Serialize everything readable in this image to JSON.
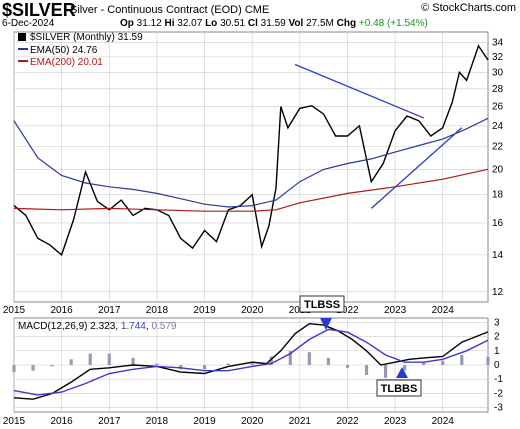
{
  "header": {
    "symbol": "$SILVER",
    "description": "Silver - Continuous Contract (EOD)",
    "exchange": "CME",
    "date": "6-Dec-2024",
    "brand": "© StockCharts.com",
    "open_label": "Op",
    "open": "31.12",
    "high_label": "Hi",
    "high": "32.07",
    "low_label": "Lo",
    "low": "30.51",
    "close_label": "Cl",
    "close": "31.59",
    "vol_label": "Vol",
    "vol": "27.5M",
    "chg_label": "Chg",
    "chg": "+0.48 (+1.54%)"
  },
  "legend": {
    "price": "$SILVER (Monthly) 31.59",
    "ema50": "EMA(50) 24.76",
    "ema200": "EMA(200) 20.01"
  },
  "macd_legend": {
    "label": "MACD(12,26,9)",
    "macd": "2.323",
    "signal": "1.744",
    "hist": "0.579"
  },
  "annotations": {
    "tlbss": "TLBSS",
    "tlbbs": "TLBBS"
  },
  "colors": {
    "price": "#000000",
    "ema50": "#2a3a9a",
    "ema200": "#b01818",
    "trendline": "#2a3ad0",
    "macd": "#000000",
    "signal": "#3a3ad0",
    "hist": "#9a9ab4",
    "chg": "#1a9a1a",
    "grid": "#cccccc"
  },
  "chart_data": [
    {
      "type": "line",
      "title": "$SILVER (Monthly)",
      "x_ticks": [
        "2015",
        "2016",
        "2017",
        "2018",
        "2019",
        "2020",
        "2021",
        "2022",
        "2023",
        "2024"
      ],
      "y_ticks": [
        12,
        14,
        16,
        18,
        20,
        22,
        24,
        26,
        28,
        30,
        32,
        34
      ],
      "scale": "log",
      "ylim": [
        11.5,
        35.5
      ],
      "grid": true,
      "x_start": 2015.0,
      "x_end": 2024.95,
      "series": [
        {
          "name": "$SILVER (Monthly)",
          "x": [
            2015.0,
            2015.25,
            2015.5,
            2015.75,
            2016.0,
            2016.25,
            2016.5,
            2016.75,
            2017.0,
            2017.25,
            2017.5,
            2017.75,
            2018.0,
            2018.25,
            2018.5,
            2018.75,
            2019.0,
            2019.25,
            2019.5,
            2019.75,
            2020.0,
            2020.2,
            2020.35,
            2020.5,
            2020.6,
            2020.75,
            2021.0,
            2021.25,
            2021.5,
            2021.75,
            2022.0,
            2022.25,
            2022.5,
            2022.75,
            2023.0,
            2023.25,
            2023.5,
            2023.75,
            2024.0,
            2024.2,
            2024.35,
            2024.5,
            2024.75,
            2024.95
          ],
          "values": [
            17.2,
            16.5,
            15.0,
            14.6,
            14.0,
            16.2,
            19.8,
            17.5,
            16.9,
            17.6,
            16.5,
            17.0,
            16.9,
            16.5,
            15.0,
            14.4,
            15.5,
            14.8,
            16.9,
            17.2,
            18.0,
            14.5,
            15.8,
            18.5,
            26.0,
            23.8,
            25.8,
            26.1,
            25.2,
            23.0,
            23.0,
            24.0,
            19.0,
            20.5,
            23.5,
            25.0,
            24.5,
            23.0,
            23.8,
            26.5,
            30.0,
            29.0,
            33.5,
            31.59
          ]
        },
        {
          "name": "EMA(50)",
          "x": [
            2015.0,
            2015.5,
            2016.0,
            2016.5,
            2017.0,
            2017.5,
            2018.0,
            2018.5,
            2019.0,
            2019.5,
            2020.0,
            2020.5,
            2021.0,
            2021.5,
            2022.0,
            2022.5,
            2023.0,
            2023.5,
            2024.0,
            2024.5,
            2024.95
          ],
          "values": [
            24.5,
            21.0,
            19.5,
            18.9,
            18.6,
            18.4,
            18.1,
            17.7,
            17.3,
            17.1,
            17.2,
            17.6,
            19.0,
            20.0,
            20.5,
            20.9,
            21.5,
            22.1,
            22.7,
            23.7,
            24.76
          ]
        },
        {
          "name": "EMA(200)",
          "x": [
            2015.0,
            2016.0,
            2017.0,
            2018.0,
            2019.0,
            2020.0,
            2020.5,
            2021.0,
            2022.0,
            2023.0,
            2024.0,
            2024.95
          ],
          "values": [
            17.0,
            16.9,
            17.0,
            16.9,
            16.8,
            16.8,
            16.9,
            17.4,
            18.1,
            18.6,
            19.2,
            20.01
          ]
        }
      ],
      "annotations": [
        {
          "text": "trendline",
          "x": [
            2020.9,
            2023.6
          ],
          "y": [
            31.0,
            24.8
          ]
        },
        {
          "text": "trendline",
          "x": [
            2022.5,
            2024.4
          ],
          "y": [
            17.0,
            23.8
          ]
        }
      ]
    },
    {
      "type": "line",
      "title": "MACD(12,26,9)",
      "x_ticks": [
        "2015",
        "2016",
        "2017",
        "2018",
        "2019",
        "2020",
        "2021",
        "2022",
        "2023",
        "2024"
      ],
      "y_ticks": [
        -3,
        -2,
        -1,
        0,
        1,
        2,
        3
      ],
      "ylim": [
        -3.3,
        3.3
      ],
      "grid": true,
      "series": [
        {
          "name": "MACD",
          "x": [
            2015.0,
            2015.4,
            2015.8,
            2016.2,
            2016.6,
            2017.0,
            2017.5,
            2018.0,
            2018.5,
            2019.0,
            2019.5,
            2020.0,
            2020.3,
            2020.6,
            2020.9,
            2021.2,
            2021.5,
            2021.8,
            2022.1,
            2022.4,
            2022.7,
            2023.0,
            2023.3,
            2023.6,
            2024.0,
            2024.4,
            2024.95
          ],
          "values": [
            -2.3,
            -2.4,
            -2.0,
            -1.2,
            -0.3,
            -0.2,
            0.0,
            -0.1,
            -0.5,
            -0.6,
            -0.1,
            0.2,
            0.1,
            1.0,
            2.2,
            2.9,
            2.8,
            2.4,
            1.8,
            1.0,
            0.0,
            0.2,
            0.4,
            0.5,
            0.6,
            1.6,
            2.323
          ]
        },
        {
          "name": "Signal",
          "x": [
            2015.0,
            2015.5,
            2016.0,
            2016.5,
            2017.0,
            2017.5,
            2018.0,
            2018.5,
            2019.0,
            2019.5,
            2020.0,
            2020.4,
            2020.8,
            2021.2,
            2021.6,
            2022.0,
            2022.4,
            2022.8,
            2023.2,
            2023.6,
            2024.0,
            2024.5,
            2024.95
          ],
          "values": [
            -1.8,
            -2.1,
            -1.9,
            -1.3,
            -0.6,
            -0.3,
            -0.1,
            -0.2,
            -0.4,
            -0.4,
            -0.1,
            0.1,
            0.8,
            1.8,
            2.5,
            2.3,
            1.6,
            0.7,
            0.2,
            0.2,
            0.4,
            1.0,
            1.744
          ]
        },
        {
          "name": "Histogram",
          "x": [
            2015.0,
            2015.4,
            2015.8,
            2016.2,
            2016.6,
            2017.0,
            2017.5,
            2018.0,
            2018.5,
            2019.0,
            2019.5,
            2020.0,
            2020.4,
            2020.8,
            2021.2,
            2021.6,
            2022.0,
            2022.4,
            2022.8,
            2023.2,
            2023.6,
            2024.0,
            2024.4,
            2024.95
          ],
          "values": [
            -0.5,
            -0.4,
            -0.1,
            0.4,
            0.8,
            0.8,
            0.5,
            0.1,
            -0.3,
            -0.3,
            0.1,
            0.2,
            0.6,
            1.0,
            0.9,
            0.5,
            -0.2,
            -0.7,
            -0.9,
            -0.4,
            0.2,
            0.3,
            0.7,
            0.579
          ]
        }
      ]
    }
  ]
}
